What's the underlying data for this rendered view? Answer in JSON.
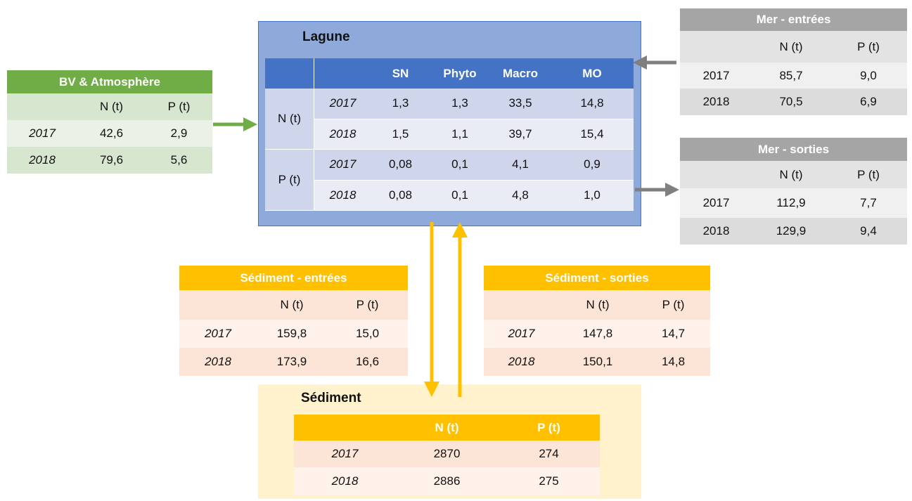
{
  "lagune": {
    "title": "Lagune",
    "header": [
      "SN",
      "Phyto",
      "Macro",
      "MO"
    ],
    "groups": [
      {
        "label": "N (t)",
        "rows": [
          {
            "year": "2017",
            "values": [
              "1,3",
              "1,3",
              "33,5",
              "14,8"
            ]
          },
          {
            "year": "2018",
            "values": [
              "1,5",
              "1,1",
              "39,7",
              "15,4"
            ]
          }
        ]
      },
      {
        "label": "P (t)",
        "rows": [
          {
            "year": "2017",
            "values": [
              "0,08",
              "0,1",
              "4,1",
              "0,9"
            ]
          },
          {
            "year": "2018",
            "values": [
              "0,08",
              "0,1",
              "4,8",
              "1,0"
            ]
          }
        ]
      }
    ]
  },
  "bv": {
    "title": "BV & Atmosphère",
    "header": [
      "N (t)",
      "P (t)"
    ],
    "rows": [
      {
        "year": "2017",
        "values": [
          "42,6",
          "2,9"
        ]
      },
      {
        "year": "2018",
        "values": [
          "79,6",
          "5,6"
        ]
      }
    ]
  },
  "mer_entrees": {
    "title": "Mer - entrées",
    "header": [
      "N (t)",
      "P (t)"
    ],
    "rows": [
      {
        "year": "2017",
        "values": [
          "85,7",
          "9,0"
        ]
      },
      {
        "year": "2018",
        "values": [
          "70,5",
          "6,9"
        ]
      }
    ]
  },
  "mer_sorties": {
    "title": "Mer - sorties",
    "header": [
      "N (t)",
      "P (t)"
    ],
    "rows": [
      {
        "year": "2017",
        "values": [
          "112,9",
          "7,7"
        ]
      },
      {
        "year": "2018",
        "values": [
          "129,9",
          "9,4"
        ]
      }
    ]
  },
  "sediment_entrees": {
    "title": "Sédiment - entrées",
    "header": [
      "N (t)",
      "P (t)"
    ],
    "rows": [
      {
        "year": "2017",
        "values": [
          "159,8",
          "15,0"
        ]
      },
      {
        "year": "2018",
        "values": [
          "173,9",
          "16,6"
        ]
      }
    ]
  },
  "sediment_sorties": {
    "title": "Sédiment - sorties",
    "header": [
      "N (t)",
      "P (t)"
    ],
    "rows": [
      {
        "year": "2017",
        "values": [
          "147,8",
          "14,7"
        ]
      },
      {
        "year": "2018",
        "values": [
          "150,1",
          "14,8"
        ]
      }
    ]
  },
  "sediment": {
    "title": "Sédiment",
    "header": [
      "N (t)",
      "P (t)"
    ],
    "rows": [
      {
        "year": "2017",
        "values": [
          "2870",
          "274"
        ]
      },
      {
        "year": "2018",
        "values": [
          "2886",
          "275"
        ]
      }
    ]
  }
}
